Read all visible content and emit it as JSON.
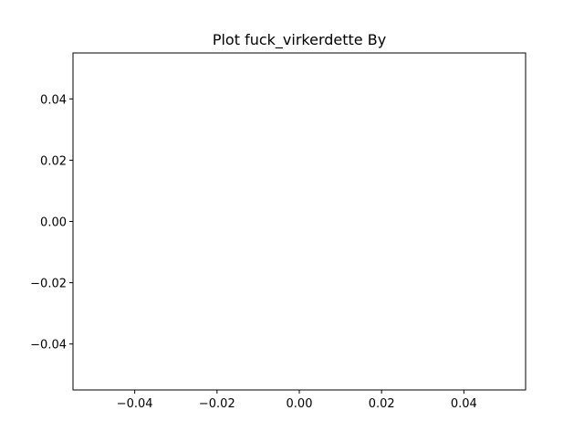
{
  "chart_data": {
    "type": "line",
    "title": "Plot fuck_virkerdette By",
    "xlabel": "",
    "ylabel": "",
    "xlim": [
      -0.055,
      0.055
    ],
    "ylim": [
      -0.055,
      0.055
    ],
    "x_ticks": [
      -0.04,
      -0.02,
      0.0,
      0.02,
      0.04
    ],
    "x_tick_labels": [
      "−0.04",
      "−0.02",
      "0.00",
      "0.02",
      "0.04"
    ],
    "y_ticks": [
      -0.04,
      -0.02,
      0.0,
      0.02,
      0.04
    ],
    "y_tick_labels": [
      "−0.04",
      "−0.02",
      "0.00",
      "0.02",
      "0.04"
    ],
    "grid": false,
    "series": [
      {
        "x": [],
        "y": []
      }
    ]
  }
}
